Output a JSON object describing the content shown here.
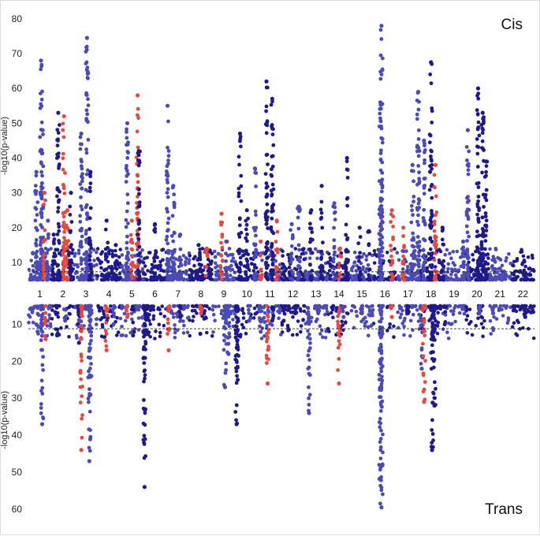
{
  "chart_data": {
    "type": "scatter",
    "subtype": "miami-plot",
    "colors": {
      "dark": "#1f1a8c",
      "light": "#4a4ab8",
      "highlight": "#e8493c",
      "threshold": "#222222"
    },
    "chromosomes": [
      "1",
      "2",
      "3",
      "4",
      "5",
      "6",
      "7",
      "8",
      "9",
      "10",
      "11",
      "12",
      "13",
      "14",
      "15",
      "16",
      "17",
      "18",
      "19",
      "20",
      "21",
      "22"
    ],
    "chromosome_spans": [
      [
        0.0,
        1.0
      ],
      [
        1.0,
        2.0
      ],
      [
        2.0,
        3.0
      ],
      [
        3.0,
        4.0
      ],
      [
        4.0,
        5.0
      ],
      [
        5.0,
        6.0
      ],
      [
        6.0,
        7.0
      ],
      [
        7.0,
        8.0
      ],
      [
        8.0,
        9.0
      ],
      [
        9.0,
        10.0
      ],
      [
        10.0,
        11.0
      ],
      [
        11.0,
        12.0
      ],
      [
        12.0,
        13.0
      ],
      [
        13.0,
        14.0
      ],
      [
        14.0,
        15.0
      ],
      [
        15.0,
        16.0
      ],
      [
        16.0,
        17.0
      ],
      [
        17.0,
        18.0
      ],
      [
        18.0,
        19.0
      ],
      [
        19.0,
        20.0
      ],
      [
        20.0,
        21.0
      ],
      [
        21.0,
        22.0
      ]
    ],
    "panels": [
      {
        "name": "Cis",
        "ylabel": "-log10(p-value)",
        "ylim": [
          5,
          82
        ],
        "yticks": [
          10,
          20,
          30,
          40,
          50,
          60,
          70,
          80
        ],
        "threshold": 7.3,
        "peaks": [
          {
            "x": 0.35,
            "y": 36,
            "color": "light"
          },
          {
            "x": 0.55,
            "y": 68,
            "color": "light"
          },
          {
            "x": 0.62,
            "y": 48,
            "color": "light"
          },
          {
            "x": 0.7,
            "y": 30,
            "color": "highlight"
          },
          {
            "x": 0.85,
            "y": 22,
            "color": "light"
          },
          {
            "x": 1.1,
            "y": 18,
            "color": "dark"
          },
          {
            "x": 1.3,
            "y": 53,
            "color": "dark"
          },
          {
            "x": 1.55,
            "y": 52,
            "color": "highlight"
          },
          {
            "x": 1.7,
            "y": 25,
            "color": "highlight"
          },
          {
            "x": 1.85,
            "y": 30,
            "color": "dark"
          },
          {
            "x": 2.3,
            "y": 47,
            "color": "light"
          },
          {
            "x": 2.55,
            "y": 74.5,
            "color": "light"
          },
          {
            "x": 2.7,
            "y": 36,
            "color": "dark"
          },
          {
            "x": 3.4,
            "y": 22,
            "color": "dark"
          },
          {
            "x": 3.8,
            "y": 15,
            "color": "dark"
          },
          {
            "x": 4.3,
            "y": 50,
            "color": "light"
          },
          {
            "x": 4.5,
            "y": 22,
            "color": "highlight"
          },
          {
            "x": 4.75,
            "y": 58,
            "color": "highlight"
          },
          {
            "x": 4.8,
            "y": 42,
            "color": "dark"
          },
          {
            "x": 5.5,
            "y": 21,
            "color": "dark"
          },
          {
            "x": 6.05,
            "y": 55,
            "color": "light"
          },
          {
            "x": 6.3,
            "y": 32,
            "color": "light"
          },
          {
            "x": 6.6,
            "y": 18,
            "color": "light"
          },
          {
            "x": 7.4,
            "y": 15,
            "color": "dark"
          },
          {
            "x": 7.75,
            "y": 14,
            "color": "highlight"
          },
          {
            "x": 8.4,
            "y": 24,
            "color": "highlight"
          },
          {
            "x": 8.6,
            "y": 16,
            "color": "light"
          },
          {
            "x": 9.2,
            "y": 47,
            "color": "dark"
          },
          {
            "x": 9.5,
            "y": 25,
            "color": "dark"
          },
          {
            "x": 9.85,
            "y": 37,
            "color": "light"
          },
          {
            "x": 10.1,
            "y": 16,
            "color": "highlight"
          },
          {
            "x": 10.35,
            "y": 62,
            "color": "dark"
          },
          {
            "x": 10.6,
            "y": 57,
            "color": "dark"
          },
          {
            "x": 10.8,
            "y": 22,
            "color": "highlight"
          },
          {
            "x": 11.45,
            "y": 21,
            "color": "light"
          },
          {
            "x": 11.75,
            "y": 26,
            "color": "light"
          },
          {
            "x": 12.3,
            "y": 25,
            "color": "dark"
          },
          {
            "x": 12.75,
            "y": 32,
            "color": "dark"
          },
          {
            "x": 13.3,
            "y": 27,
            "color": "light"
          },
          {
            "x": 13.55,
            "y": 14,
            "color": "highlight"
          },
          {
            "x": 13.85,
            "y": 40,
            "color": "dark"
          },
          {
            "x": 14.4,
            "y": 20,
            "color": "dark"
          },
          {
            "x": 14.8,
            "y": 19,
            "color": "dark"
          },
          {
            "x": 15.3,
            "y": 56,
            "color": "light"
          },
          {
            "x": 15.35,
            "y": 78,
            "color": "light"
          },
          {
            "x": 15.8,
            "y": 25,
            "color": "highlight"
          },
          {
            "x": 16.3,
            "y": 20,
            "color": "highlight"
          },
          {
            "x": 16.7,
            "y": 38,
            "color": "light"
          },
          {
            "x": 16.95,
            "y": 59,
            "color": "light"
          },
          {
            "x": 17.2,
            "y": 45,
            "color": "light"
          },
          {
            "x": 17.5,
            "y": 67.5,
            "color": "dark"
          },
          {
            "x": 17.7,
            "y": 38,
            "color": "highlight"
          },
          {
            "x": 18.0,
            "y": 20,
            "color": "dark"
          },
          {
            "x": 18.9,
            "y": 16,
            "color": "light"
          },
          {
            "x": 19.1,
            "y": 48,
            "color": "light"
          },
          {
            "x": 19.55,
            "y": 60,
            "color": "dark"
          },
          {
            "x": 19.75,
            "y": 53,
            "color": "dark"
          },
          {
            "x": 19.9,
            "y": 39,
            "color": "dark"
          }
        ]
      },
      {
        "name": "Trans",
        "ylabel": "-log10(p-value)",
        "ylim": [
          5,
          63
        ],
        "yticks": [
          10,
          20,
          30,
          40,
          50,
          60
        ],
        "threshold": 11.2,
        "peaks": [
          {
            "x": 0.4,
            "y": 12,
            "color": "light"
          },
          {
            "x": 0.6,
            "y": 37,
            "color": "light"
          },
          {
            "x": 0.75,
            "y": 14,
            "color": "highlight"
          },
          {
            "x": 1.25,
            "y": 13,
            "color": "dark"
          },
          {
            "x": 1.6,
            "y": 9,
            "color": "light"
          },
          {
            "x": 2.2,
            "y": 15,
            "color": "dark"
          },
          {
            "x": 2.3,
            "y": 44,
            "color": "highlight"
          },
          {
            "x": 2.65,
            "y": 47,
            "color": "light"
          },
          {
            "x": 2.7,
            "y": 29,
            "color": "light"
          },
          {
            "x": 3.4,
            "y": 17,
            "color": "highlight"
          },
          {
            "x": 3.7,
            "y": 10,
            "color": "light"
          },
          {
            "x": 4.3,
            "y": 8,
            "color": "highlight"
          },
          {
            "x": 4.55,
            "y": 13,
            "color": "dark"
          },
          {
            "x": 5.05,
            "y": 54,
            "color": "dark"
          },
          {
            "x": 5.15,
            "y": 12,
            "color": "dark"
          },
          {
            "x": 6.1,
            "y": 17,
            "color": "highlight"
          },
          {
            "x": 6.6,
            "y": 8,
            "color": "dark"
          },
          {
            "x": 7.5,
            "y": 7,
            "color": "highlight"
          },
          {
            "x": 8.55,
            "y": 27,
            "color": "light"
          },
          {
            "x": 8.7,
            "y": 18,
            "color": "light"
          },
          {
            "x": 9.05,
            "y": 37,
            "color": "dark"
          },
          {
            "x": 9.1,
            "y": 25,
            "color": "dark"
          },
          {
            "x": 9.6,
            "y": 9,
            "color": "light"
          },
          {
            "x": 10.1,
            "y": 12,
            "color": "light"
          },
          {
            "x": 10.4,
            "y": 26,
            "color": "highlight"
          },
          {
            "x": 10.6,
            "y": 9,
            "color": "dark"
          },
          {
            "x": 11.1,
            "y": 9,
            "color": "dark"
          },
          {
            "x": 11.6,
            "y": 7,
            "color": "dark"
          },
          {
            "x": 12.2,
            "y": 34,
            "color": "light"
          },
          {
            "x": 12.6,
            "y": 7,
            "color": "light"
          },
          {
            "x": 13.5,
            "y": 26,
            "color": "highlight"
          },
          {
            "x": 13.7,
            "y": 8,
            "color": "light"
          },
          {
            "x": 14.5,
            "y": 7,
            "color": "light"
          },
          {
            "x": 15.3,
            "y": 52,
            "color": "light"
          },
          {
            "x": 15.35,
            "y": 59.5,
            "color": "light"
          },
          {
            "x": 15.8,
            "y": 8,
            "color": "highlight"
          },
          {
            "x": 16.5,
            "y": 7,
            "color": "dark"
          },
          {
            "x": 17.1,
            "y": 22,
            "color": "light"
          },
          {
            "x": 17.2,
            "y": 31,
            "color": "highlight"
          },
          {
            "x": 17.55,
            "y": 44,
            "color": "dark"
          },
          {
            "x": 17.65,
            "y": 32,
            "color": "dark"
          },
          {
            "x": 18.1,
            "y": 10,
            "color": "dark"
          },
          {
            "x": 19.6,
            "y": 7,
            "color": "light"
          },
          {
            "x": 20.2,
            "y": 7,
            "color": "light"
          },
          {
            "x": 21.6,
            "y": 8,
            "color": "dark"
          }
        ]
      }
    ]
  }
}
